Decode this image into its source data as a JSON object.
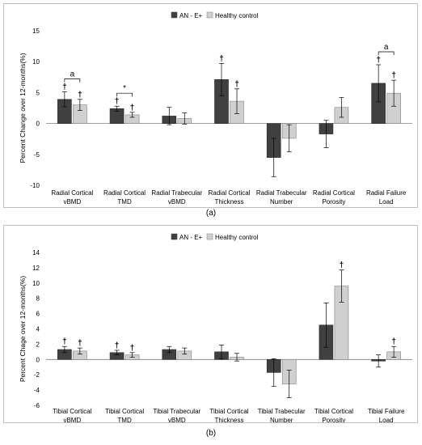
{
  "chart_data": [
    {
      "type": "bar",
      "panel_label": "(a)",
      "ylabel": "Percent Change over 12-months(%)",
      "ylim": [
        -10,
        15
      ],
      "yticks": [
        -10,
        -5,
        0,
        5,
        10,
        15
      ],
      "legend_position": "top-center",
      "categories": [
        "Radial Cortical vBMD",
        "Radial Cortical TMD",
        "Radial Trabecular vBMD",
        "Radial Cortical Thickness",
        "Radial Trabecular Number",
        "Radial Cortical Porosity",
        "Radial Failure Load"
      ],
      "series": [
        {
          "name": "AN - E+",
          "color": "#404040",
          "values": [
            3.9,
            2.4,
            1.2,
            7.1,
            -5.5,
            -1.7,
            6.5
          ],
          "errors": [
            1.2,
            0.4,
            1.4,
            2.6,
            3.1,
            2.2,
            3.0
          ],
          "marks": [
            "†",
            "†",
            "",
            "†",
            "",
            "",
            "†"
          ]
        },
        {
          "name": "Healthy control",
          "color": "#d0d0d0",
          "values": [
            3.0,
            1.4,
            0.8,
            3.6,
            -2.4,
            2.6,
            4.9
          ],
          "errors": [
            0.9,
            0.4,
            0.9,
            2.0,
            2.2,
            1.6,
            2.1
          ],
          "marks": [
            "†",
            "†",
            "",
            "†",
            "",
            "",
            "†"
          ]
        }
      ],
      "brackets": [
        {
          "category": 0,
          "label": "a"
        },
        {
          "category": 1,
          "label": "*"
        },
        {
          "category": 6,
          "label": "a"
        }
      ]
    },
    {
      "type": "bar",
      "panel_label": "(b)",
      "ylabel": "Percent Chage over 12-months(%)",
      "ylim": [
        -6,
        14
      ],
      "yticks": [
        -6,
        -4,
        -2,
        0,
        2,
        4,
        6,
        8,
        10,
        12,
        14
      ],
      "legend_position": "top-center",
      "categories": [
        "Tibial Cortical vBMD",
        "Tibial Cortical TMD",
        "Tibial Trabecular vBMD",
        "Tibial Cortical Thickness",
        "Tibial Trabecular Number",
        "Tibial Cortical Porosity",
        "Tibial Failure Load"
      ],
      "series": [
        {
          "name": "AN - E+",
          "color": "#404040",
          "values": [
            1.3,
            0.9,
            1.3,
            1.0,
            -1.7,
            4.5,
            -0.2
          ],
          "errors": [
            0.4,
            0.3,
            0.4,
            0.9,
            1.8,
            2.9,
            0.8
          ],
          "marks": [
            "†",
            "†",
            "",
            "",
            "",
            "",
            ""
          ]
        },
        {
          "name": "Healthy control",
          "color": "#d0d0d0",
          "values": [
            1.1,
            0.6,
            1.1,
            0.3,
            -3.2,
            9.6,
            1.0
          ],
          "errors": [
            0.4,
            0.3,
            0.4,
            0.5,
            1.8,
            2.1,
            0.7
          ],
          "marks": [
            "†",
            "†",
            "",
            "",
            "",
            "†",
            "†"
          ]
        }
      ],
      "brackets": []
    }
  ]
}
